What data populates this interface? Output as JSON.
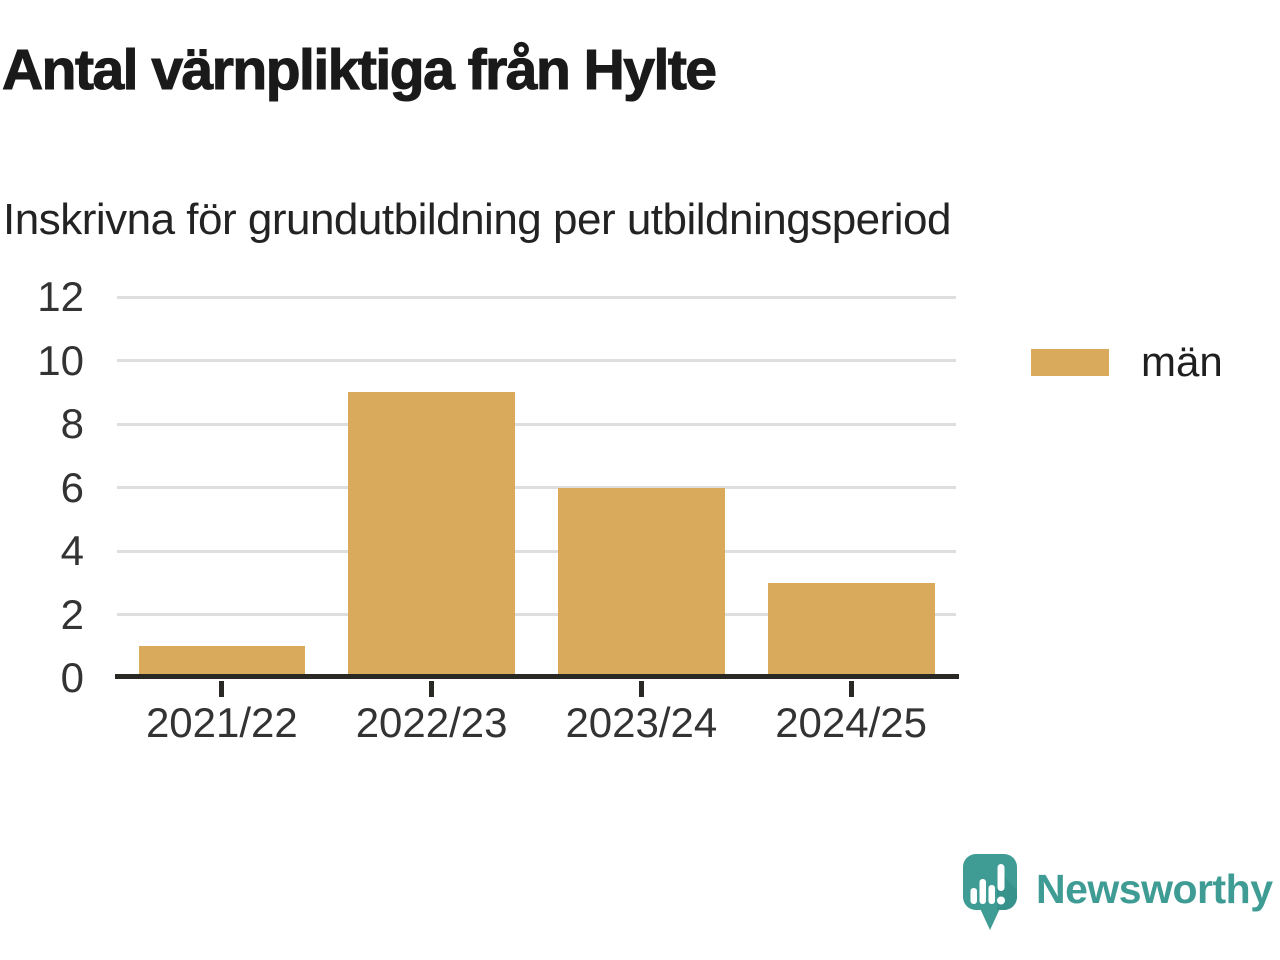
{
  "header": {
    "title": "Antal värnpliktiga från Hylte",
    "subtitle": "Inskrivna för grundutbildning per utbildningsperiod"
  },
  "chart_data": {
    "type": "bar",
    "title": "Antal värnpliktiga från Hylte",
    "subtitle": "Inskrivna för grundutbildning per utbildningsperiod",
    "categories": [
      "2021/22",
      "2022/23",
      "2023/24",
      "2024/25"
    ],
    "series": [
      {
        "name": "män",
        "values": [
          1,
          9,
          6,
          3
        ]
      }
    ],
    "xlabel": "",
    "ylabel": "",
    "ylim": [
      0,
      12
    ],
    "yticks": [
      0,
      2,
      4,
      6,
      8,
      10,
      12
    ],
    "grid": "horizontal",
    "legend_position": "right"
  },
  "colors": {
    "bar": "#d9a95c",
    "teal": "#3e9c94",
    "teal_shadow": "#2f8a82",
    "gridline": "#dedede",
    "axis": "#2a2824",
    "title_text": "#1a1a1a",
    "subtitle_text": "#232323",
    "tick_text": "#333333"
  },
  "footer": {
    "brand": "Newsworthy"
  }
}
